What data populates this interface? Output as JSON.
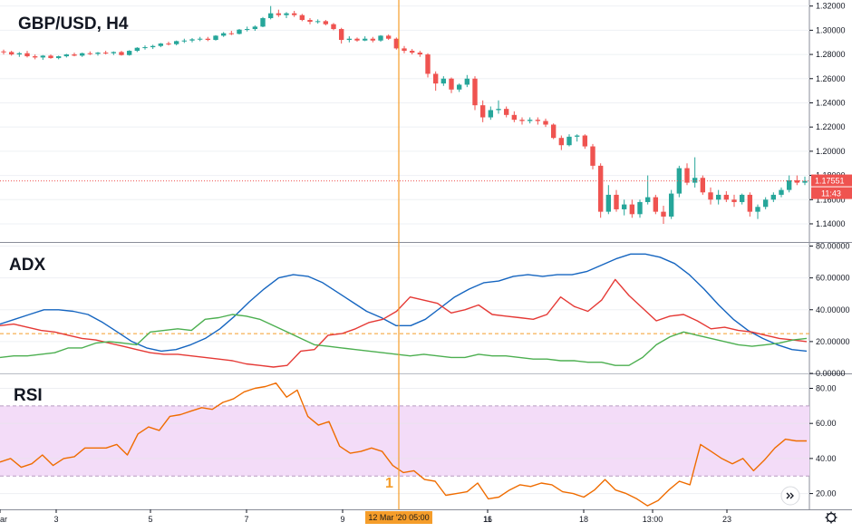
{
  "colors": {
    "up": "#26a69a",
    "down": "#ef5350",
    "adx": "#1565c0",
    "di_plus": "#4caf50",
    "di_minus": "#e53935",
    "rsi": "#ef6c00",
    "rsi_band": "#f3dcf8",
    "cursor": "#f59d2a",
    "price_line": "#ef5350"
  },
  "annotations": {
    "marker_label": "1",
    "cursor_time": "12 Mar '20  05:00",
    "price_tag": "1.17551",
    "countdown_tag": "11:43",
    "scroll_icon": "double-chevron-right-icon",
    "settings_icon": "gear-icon"
  },
  "chart_data": [
    {
      "type": "candlestick",
      "title": "GBP/USD, H4",
      "xlabel": "",
      "ylabel": "",
      "ylim": [
        1.125,
        1.325
      ],
      "y_ticks": [
        "1.32000",
        "1.30000",
        "1.28000",
        "1.26000",
        "1.24000",
        "1.22000",
        "1.20000",
        "1.18000",
        "1.16000",
        "1.14000"
      ],
      "x_ticks": [
        "ar",
        "3",
        "5",
        "7",
        "9",
        "11",
        "16",
        "18",
        "13:00",
        "23"
      ],
      "last_price": 1.17551,
      "cursor": "12 Mar '20 05:00",
      "ohlc": [
        [
          1.2825,
          1.284,
          1.28,
          1.282
        ],
        [
          1.282,
          1.283,
          1.279,
          1.28
        ],
        [
          1.28,
          1.282,
          1.278,
          1.281
        ],
        [
          1.281,
          1.283,
          1.2775,
          1.2785
        ],
        [
          1.2785,
          1.28,
          1.276,
          1.2775
        ],
        [
          1.2775,
          1.2795,
          1.2755,
          1.279
        ],
        [
          1.279,
          1.28,
          1.2765,
          1.277
        ],
        [
          1.277,
          1.279,
          1.276,
          1.2785
        ],
        [
          1.2785,
          1.2805,
          1.2775,
          1.28
        ],
        [
          1.28,
          1.2815,
          1.2785,
          1.279
        ],
        [
          1.279,
          1.2815,
          1.278,
          1.281
        ],
        [
          1.281,
          1.2825,
          1.2795,
          1.2805
        ],
        [
          1.2805,
          1.282,
          1.279,
          1.2815
        ],
        [
          1.2815,
          1.283,
          1.28,
          1.281
        ],
        [
          1.281,
          1.2825,
          1.2795,
          1.282
        ],
        [
          1.282,
          1.283,
          1.279,
          1.2795
        ],
        [
          1.2795,
          1.2835,
          1.279,
          1.283
        ],
        [
          1.283,
          1.286,
          1.282,
          1.2855
        ],
        [
          1.2855,
          1.2875,
          1.284,
          1.286
        ],
        [
          1.286,
          1.288,
          1.2845,
          1.287
        ],
        [
          1.287,
          1.2895,
          1.286,
          1.289
        ],
        [
          1.289,
          1.2905,
          1.2875,
          1.2885
        ],
        [
          1.2885,
          1.2915,
          1.2875,
          1.291
        ],
        [
          1.291,
          1.293,
          1.2895,
          1.2915
        ],
        [
          1.2915,
          1.2935,
          1.29,
          1.2925
        ],
        [
          1.2925,
          1.2945,
          1.291,
          1.293
        ],
        [
          1.293,
          1.2945,
          1.291,
          1.292
        ],
        [
          1.292,
          1.296,
          1.2915,
          1.2955
        ],
        [
          1.2955,
          1.2985,
          1.2945,
          1.2975
        ],
        [
          1.2975,
          1.2995,
          1.296,
          1.297
        ],
        [
          1.297,
          1.301,
          1.2965,
          1.3005
        ],
        [
          1.3005,
          1.303,
          1.299,
          1.301
        ],
        [
          1.301,
          1.304,
          1.2995,
          1.303
        ],
        [
          1.303,
          1.311,
          1.3025,
          1.31
        ],
        [
          1.31,
          1.32,
          1.309,
          1.314
        ],
        [
          1.314,
          1.317,
          1.311,
          1.3125
        ],
        [
          1.3125,
          1.315,
          1.31,
          1.314
        ],
        [
          1.314,
          1.316,
          1.311,
          1.3125
        ],
        [
          1.3125,
          1.3135,
          1.3075,
          1.3085
        ],
        [
          1.3085,
          1.31,
          1.305,
          1.307
        ],
        [
          1.307,
          1.309,
          1.3055,
          1.3075
        ],
        [
          1.3075,
          1.3085,
          1.304,
          1.305
        ],
        [
          1.305,
          1.306,
          1.3,
          1.301
        ],
        [
          1.301,
          1.302,
          1.289,
          1.292
        ],
        [
          1.292,
          1.295,
          1.29,
          1.293
        ],
        [
          1.293,
          1.294,
          1.2905,
          1.2915
        ],
        [
          1.2915,
          1.295,
          1.291,
          1.293
        ],
        [
          1.293,
          1.2945,
          1.29,
          1.2915
        ],
        [
          1.2915,
          1.296,
          1.2905,
          1.2955
        ],
        [
          1.2955,
          1.2965,
          1.292,
          1.293
        ],
        [
          1.293,
          1.294,
          1.284,
          1.285
        ],
        [
          1.285,
          1.287,
          1.281,
          1.283
        ],
        [
          1.283,
          1.2845,
          1.28,
          1.2815
        ],
        [
          1.2815,
          1.283,
          1.278,
          1.28
        ],
        [
          1.28,
          1.281,
          1.261,
          1.264
        ],
        [
          1.264,
          1.266,
          1.25,
          1.256
        ],
        [
          1.256,
          1.262,
          1.254,
          1.26
        ],
        [
          1.26,
          1.261,
          1.248,
          1.251
        ],
        [
          1.251,
          1.256,
          1.249,
          1.255
        ],
        [
          1.255,
          1.263,
          1.253,
          1.26
        ],
        [
          1.26,
          1.262,
          1.234,
          1.238
        ],
        [
          1.238,
          1.242,
          1.224,
          1.228
        ],
        [
          1.228,
          1.237,
          1.226,
          1.234
        ],
        [
          1.234,
          1.242,
          1.231,
          1.235
        ],
        [
          1.235,
          1.237,
          1.228,
          1.23
        ],
        [
          1.23,
          1.233,
          1.224,
          1.226
        ],
        [
          1.226,
          1.228,
          1.222,
          1.225
        ],
        [
          1.225,
          1.228,
          1.223,
          1.226
        ],
        [
          1.226,
          1.228,
          1.222,
          1.225
        ],
        [
          1.225,
          1.227,
          1.22,
          1.222
        ],
        [
          1.222,
          1.223,
          1.21,
          1.211
        ],
        [
          1.211,
          1.213,
          1.201,
          1.205
        ],
        [
          1.205,
          1.214,
          1.204,
          1.212
        ],
        [
          1.212,
          1.214,
          1.208,
          1.213
        ],
        [
          1.213,
          1.214,
          1.202,
          1.204
        ],
        [
          1.204,
          1.206,
          1.185,
          1.188
        ],
        [
          1.188,
          1.19,
          1.145,
          1.15
        ],
        [
          1.15,
          1.172,
          1.148,
          1.164
        ],
        [
          1.164,
          1.168,
          1.15,
          1.152
        ],
        [
          1.152,
          1.16,
          1.147,
          1.156
        ],
        [
          1.156,
          1.16,
          1.145,
          1.148
        ],
        [
          1.148,
          1.16,
          1.145,
          1.158
        ],
        [
          1.158,
          1.18,
          1.156,
          1.162
        ],
        [
          1.162,
          1.164,
          1.148,
          1.15
        ],
        [
          1.15,
          1.155,
          1.14,
          1.146
        ],
        [
          1.146,
          1.168,
          1.144,
          1.165
        ],
        [
          1.165,
          1.188,
          1.162,
          1.186
        ],
        [
          1.186,
          1.19,
          1.172,
          1.174
        ],
        [
          1.174,
          1.195,
          1.17,
          1.178
        ],
        [
          1.178,
          1.18,
          1.164,
          1.166
        ],
        [
          1.166,
          1.17,
          1.156,
          1.16
        ],
        [
          1.16,
          1.168,
          1.156,
          1.164
        ],
        [
          1.164,
          1.167,
          1.158,
          1.16
        ],
        [
          1.16,
          1.164,
          1.154,
          1.158
        ],
        [
          1.158,
          1.165,
          1.156,
          1.164
        ],
        [
          1.164,
          1.166,
          1.146,
          1.15
        ],
        [
          1.15,
          1.156,
          1.144,
          1.154
        ],
        [
          1.154,
          1.162,
          1.152,
          1.16
        ],
        [
          1.16,
          1.166,
          1.158,
          1.164
        ],
        [
          1.164,
          1.17,
          1.162,
          1.168
        ],
        [
          1.168,
          1.18,
          1.166,
          1.176
        ],
        [
          1.176,
          1.18,
          1.172,
          1.174
        ],
        [
          1.174,
          1.179,
          1.172,
          1.1755
        ]
      ]
    },
    {
      "type": "line",
      "title": "ADX",
      "ylim": [
        0,
        82
      ],
      "y_ticks": [
        "80.00000",
        "60.00000",
        "40.00000",
        "20.00000",
        "0.00000"
      ],
      "reference_level": 25,
      "series": [
        {
          "color": "adx",
          "values": [
            31,
            34,
            37,
            40,
            40,
            39,
            37,
            32,
            26,
            20,
            16,
            14,
            15,
            18,
            22,
            28,
            36,
            45,
            53,
            60,
            62,
            61,
            57,
            51,
            45,
            39,
            35,
            30,
            30,
            34,
            41,
            48,
            53,
            57,
            58,
            61,
            62,
            61,
            62,
            62,
            64,
            68,
            72,
            75,
            75,
            73,
            69,
            62,
            53,
            43,
            34,
            27,
            22,
            18,
            15,
            14
          ]
        },
        {
          "color": "di_minus",
          "values": [
            30,
            31,
            29,
            27,
            26,
            24,
            22,
            21,
            19,
            17,
            15,
            13,
            12,
            12,
            11,
            10,
            9,
            8,
            6,
            5,
            4,
            5,
            14,
            15,
            24,
            25,
            28,
            32,
            34,
            39,
            48,
            46,
            44,
            38,
            40,
            43,
            37,
            36,
            35,
            34,
            37,
            48,
            42,
            39,
            46,
            59,
            49,
            41,
            33,
            36,
            37,
            33,
            28,
            29,
            27,
            26,
            24,
            22,
            21,
            20
          ]
        },
        {
          "color": "di_plus",
          "values": [
            10,
            11,
            11,
            12,
            13,
            16,
            16,
            19,
            20,
            19,
            18,
            26,
            27,
            28,
            27,
            34,
            35,
            37,
            36,
            34,
            30,
            26,
            22,
            18,
            17,
            16,
            15,
            14,
            13,
            12,
            11,
            12,
            11,
            10,
            10,
            12,
            11,
            11,
            10,
            9,
            9,
            8,
            8,
            7,
            7,
            5,
            5,
            10,
            18,
            23,
            26,
            24,
            22,
            20,
            18,
            17,
            18,
            19,
            21,
            22
          ]
        }
      ]
    },
    {
      "type": "line",
      "title": "RSI",
      "ylim": [
        11,
        88
      ],
      "y_ticks": [
        "80.00",
        "60.00",
        "40.00",
        "20.00"
      ],
      "band": [
        30,
        70
      ],
      "series": [
        {
          "color": "rsi",
          "values": [
            38,
            40,
            35,
            37,
            42,
            36,
            40,
            41,
            46,
            46,
            46,
            48,
            42,
            54,
            58,
            56,
            64,
            65,
            67,
            69,
            68,
            72,
            74,
            78,
            80,
            81,
            83,
            75,
            79,
            64,
            59,
            61,
            47,
            43,
            44,
            46,
            44,
            36,
            32,
            33,
            28,
            27,
            19,
            20,
            21,
            26,
            17,
            18,
            22,
            25,
            24,
            26,
            25,
            21,
            20,
            18,
            22,
            28,
            22,
            20,
            17,
            13,
            16,
            22,
            27,
            25,
            48,
            44,
            40,
            37,
            40,
            33,
            39,
            46,
            51,
            50,
            50
          ]
        }
      ]
    }
  ]
}
